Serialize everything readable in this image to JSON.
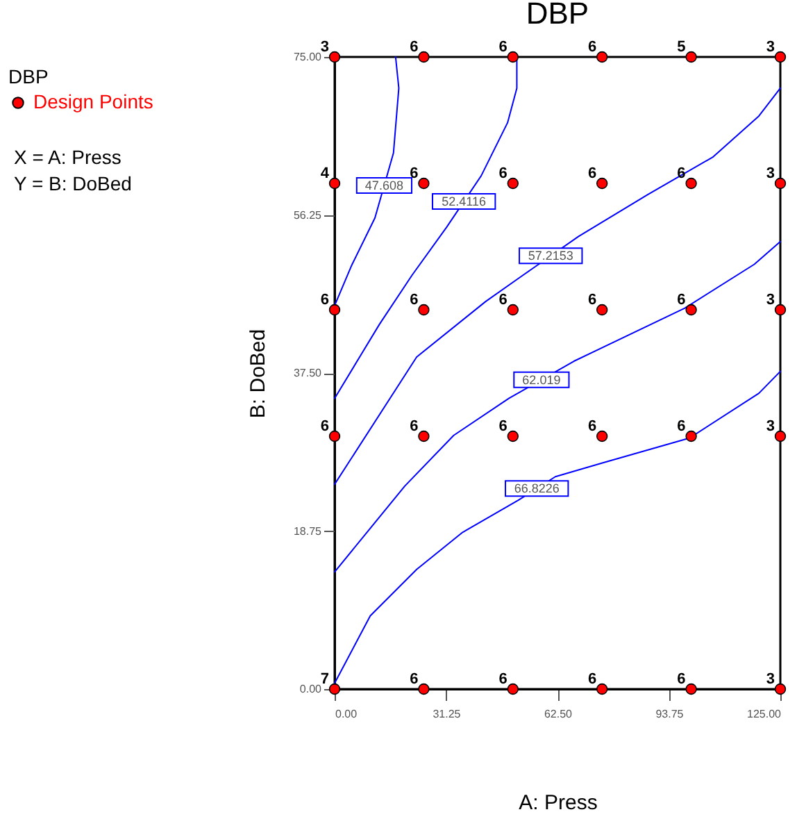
{
  "chart_data": {
    "type": "line",
    "title": "DBP",
    "xlabel": "A: Press",
    "ylabel": "B: DoBed",
    "legend_title": "DBP",
    "legend": "top left",
    "xlim": [
      0,
      125
    ],
    "ylim": [
      0,
      75
    ],
    "xticks": [
      {
        "value": 0,
        "label": "0.00"
      },
      {
        "value": 31.25,
        "label": "31.25"
      },
      {
        "value": 62.5,
        "label": "62.50"
      },
      {
        "value": 93.75,
        "label": "93.75"
      },
      {
        "value": 125,
        "label": "125.00"
      }
    ],
    "yticks": [
      {
        "value": 0,
        "label": "0.00"
      },
      {
        "value": 18.75,
        "label": "18.75"
      },
      {
        "value": 37.5,
        "label": "37.50"
      },
      {
        "value": 56.25,
        "label": "56.25"
      },
      {
        "value": 75,
        "label": "75.00"
      }
    ],
    "series": [
      {
        "name": "47.608",
        "color": "#0000ff",
        "x": [
          17.1,
          18,
          16.5,
          11.3,
          4.8,
          0
        ],
        "values": [
          75,
          71.3,
          63.6,
          55.9,
          50.3,
          45.5
        ]
      },
      {
        "name": "52.4116",
        "color": "#0000ff",
        "x": [
          51.1,
          51.1,
          48.5,
          41.1,
          31.4,
          21.7,
          12.6,
          0
        ],
        "values": [
          75,
          71.3,
          67.2,
          60.9,
          54.8,
          49.1,
          43.3,
          34.5
        ]
      },
      {
        "name": "57.2153",
        "color": "#0000ff",
        "x": [
          125,
          119,
          106,
          87.9,
          68.4,
          52.8,
          42.4,
          23,
          0
        ],
        "values": [
          71.3,
          68,
          63.1,
          58.7,
          53.7,
          49.1,
          46,
          39.4,
          24.3
        ]
      },
      {
        "name": "62.019",
        "color": "#0000ff",
        "x": [
          125,
          117.7,
          98.2,
          67.1,
          48.9,
          33.4,
          19.7,
          0
        ],
        "values": [
          53.1,
          50.4,
          45.2,
          38.9,
          34.5,
          30.1,
          24.1,
          13.9
        ]
      },
      {
        "name": "66.8226",
        "color": "#0000ff",
        "x": [
          125,
          119,
          99.6,
          74.9,
          61.9,
          51.5,
          35.9,
          23,
          10,
          0
        ],
        "values": [
          37.7,
          35.1,
          29.8,
          26.8,
          25.2,
          22.4,
          18.6,
          14.2,
          8.7,
          0.7
        ]
      },
      {
        "type": "scatter",
        "name": "Design Points",
        "color": "#ff0000",
        "x": [
          0,
          25,
          50,
          75,
          100,
          125,
          0,
          25,
          50,
          75,
          100,
          125,
          0,
          25,
          50,
          75,
          100,
          125,
          0,
          25,
          50,
          75,
          100,
          125,
          0,
          25,
          50,
          75,
          100,
          125
        ],
        "values": [
          75,
          75,
          75,
          75,
          75,
          75,
          60,
          60,
          60,
          60,
          60,
          60,
          45,
          45,
          45,
          45,
          45,
          45,
          30,
          30,
          30,
          30,
          30,
          30,
          0,
          0,
          0,
          0,
          0,
          0
        ]
      }
    ],
    "annotations": [
      "X = A: Press",
      "Y = B: DoBed",
      {
        "text": "3",
        "x": 0,
        "y": 75
      },
      {
        "text": "6",
        "x": 25,
        "y": 75
      },
      {
        "text": "6",
        "x": 50,
        "y": 75
      },
      {
        "text": "6",
        "x": 75,
        "y": 75
      },
      {
        "text": "5",
        "x": 100,
        "y": 75
      },
      {
        "text": "3",
        "x": 125,
        "y": 75
      },
      {
        "text": "4",
        "x": 0,
        "y": 60
      },
      {
        "text": "6",
        "x": 25,
        "y": 60
      },
      {
        "text": "6",
        "x": 50,
        "y": 60
      },
      {
        "text": "6",
        "x": 75,
        "y": 60
      },
      {
        "text": "6",
        "x": 100,
        "y": 60
      },
      {
        "text": "3",
        "x": 125,
        "y": 60
      },
      {
        "text": "6",
        "x": 0,
        "y": 45
      },
      {
        "text": "6",
        "x": 25,
        "y": 45
      },
      {
        "text": "6",
        "x": 50,
        "y": 45
      },
      {
        "text": "6",
        "x": 75,
        "y": 45
      },
      {
        "text": "6",
        "x": 100,
        "y": 45
      },
      {
        "text": "3",
        "x": 125,
        "y": 45
      },
      {
        "text": "6",
        "x": 0,
        "y": 30
      },
      {
        "text": "6",
        "x": 25,
        "y": 30
      },
      {
        "text": "6",
        "x": 50,
        "y": 30
      },
      {
        "text": "6",
        "x": 75,
        "y": 30
      },
      {
        "text": "6",
        "x": 100,
        "y": 30
      },
      {
        "text": "3",
        "x": 125,
        "y": 30
      },
      {
        "text": "7",
        "x": 0,
        "y": 0
      },
      {
        "text": "6",
        "x": 25,
        "y": 0
      },
      {
        "text": "6",
        "x": 50,
        "y": 0
      },
      {
        "text": "6",
        "x": 75,
        "y": 0
      },
      {
        "text": "6",
        "x": 100,
        "y": 0
      },
      {
        "text": "3",
        "x": 125,
        "y": 0
      }
    ]
  }
}
